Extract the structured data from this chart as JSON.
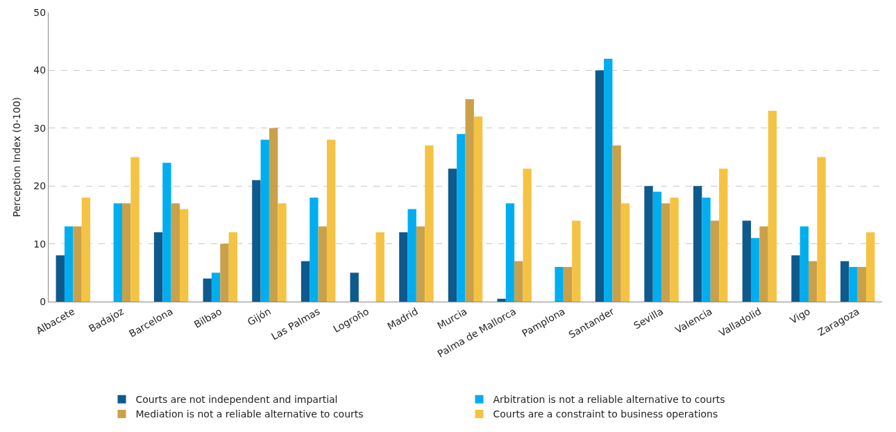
{
  "chart_data": {
    "type": "bar",
    "ylabel": "Perception Index (0-100)",
    "categories": [
      "Albacete",
      "Badajoz",
      "Barcelona",
      "Bilbao",
      "Gijón",
      "Las Palmas",
      "Logroño",
      "Madrid",
      "Murcia",
      "Palma de Mallorca",
      "Pamplona",
      "Santander",
      "Sevilla",
      "Valencia",
      "Valladolid",
      "Vigo",
      "Zaragoza"
    ],
    "series": [
      {
        "name": "Courts are not independent and impartial",
        "color": "#0f5a8c",
        "values": [
          8,
          0,
          12,
          4,
          21,
          7,
          5,
          12,
          23,
          0.5,
          0,
          40,
          20,
          20,
          14,
          8,
          7
        ]
      },
      {
        "name": "Arbitration is not a reliable alternative to courts",
        "color": "#00aeef",
        "values": [
          13,
          17,
          24,
          5,
          28,
          18,
          0,
          16,
          29,
          17,
          6,
          42,
          19,
          18,
          11,
          13,
          6
        ]
      },
      {
        "name": "Mediation is not a reliable alternative to courts",
        "color": "#c9a14a",
        "values": [
          13,
          17,
          17,
          10,
          30,
          13,
          0,
          13,
          35,
          7,
          6,
          27,
          17,
          14,
          13,
          7,
          6
        ]
      },
      {
        "name": "Courts are a constraint to business operations",
        "color": "#f5c343",
        "values": [
          18,
          25,
          16,
          12,
          17,
          28,
          12,
          27,
          32,
          23,
          14,
          17,
          18,
          23,
          33,
          25,
          12
        ]
      }
    ],
    "ylim": [
      0,
      50
    ],
    "yticks": [
      0,
      10,
      20,
      30,
      40,
      50
    ],
    "grid": "y",
    "legend": "bottom"
  }
}
